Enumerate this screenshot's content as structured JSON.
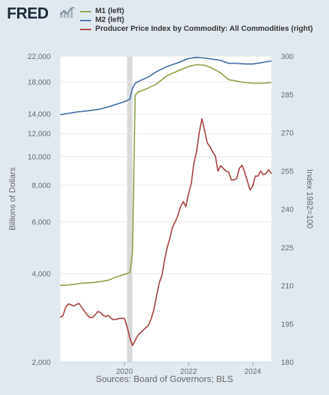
{
  "logo": {
    "text": "FRED",
    "icon": "trend-line-icon"
  },
  "source": "Sources: Board of Governors; BLS",
  "chart_data": {
    "type": "line",
    "title": "",
    "xlabel": "",
    "ylabel_left": "Billions of Dollars",
    "ylabel_right": "Index 1982=100",
    "left_axis": {
      "scale": "log",
      "range": [
        2000,
        22000
      ],
      "ticks": [
        2000,
        4000,
        6000,
        8000,
        10000,
        12000,
        14000,
        18000,
        22000
      ],
      "tick_labels": [
        "2,000",
        "4,000",
        "6,000",
        "8,000",
        "10,000",
        "12,000",
        "14,000",
        "18,000",
        "22,000"
      ]
    },
    "right_axis": {
      "scale": "linear",
      "range": [
        180,
        300
      ],
      "ticks": [
        180,
        195,
        210,
        225,
        240,
        255,
        270,
        285,
        300
      ],
      "tick_labels": [
        "180",
        "195",
        "210",
        "225",
        "240",
        "255",
        "270",
        "285",
        "300"
      ]
    },
    "x_axis": {
      "range": [
        "2018-01",
        "2024-08"
      ],
      "ticks": [
        "2020",
        "2022",
        "2024"
      ]
    },
    "recession": {
      "start": "2020-02",
      "end": "2020-04",
      "color": "#d9d9d9"
    },
    "legend_placement": "top",
    "grid": "horizontal",
    "series": [
      {
        "name": "M1 (left)",
        "axis": "left",
        "color": "#8aa54b",
        "points": [
          [
            "2018-01",
            3650
          ],
          [
            "2018-04",
            3660
          ],
          [
            "2018-07",
            3690
          ],
          [
            "2018-10",
            3720
          ],
          [
            "2019-01",
            3730
          ],
          [
            "2019-04",
            3760
          ],
          [
            "2019-07",
            3800
          ],
          [
            "2019-10",
            3900
          ],
          [
            "2020-01",
            3980
          ],
          [
            "2020-03",
            4030
          ],
          [
            "2020-04",
            4700
          ],
          [
            "2020-05",
            16200
          ],
          [
            "2020-06",
            16600
          ],
          [
            "2020-09",
            17000
          ],
          [
            "2021-01",
            17700
          ],
          [
            "2021-05",
            18900
          ],
          [
            "2021-09",
            19600
          ],
          [
            "2022-01",
            20300
          ],
          [
            "2022-04",
            20600
          ],
          [
            "2022-07",
            20500
          ],
          [
            "2022-10",
            20000
          ],
          [
            "2023-01",
            19300
          ],
          [
            "2023-04",
            18300
          ],
          [
            "2023-07",
            18100
          ],
          [
            "2023-10",
            17900
          ],
          [
            "2024-01",
            17800
          ],
          [
            "2024-04",
            17800
          ],
          [
            "2024-08",
            17900
          ]
        ]
      },
      {
        "name": "M2 (left)",
        "axis": "left",
        "color": "#4572a7",
        "points": [
          [
            "2018-01",
            13900
          ],
          [
            "2018-04",
            14050
          ],
          [
            "2018-07",
            14200
          ],
          [
            "2018-10",
            14300
          ],
          [
            "2019-01",
            14400
          ],
          [
            "2019-04",
            14550
          ],
          [
            "2019-07",
            14800
          ],
          [
            "2019-10",
            15100
          ],
          [
            "2020-01",
            15400
          ],
          [
            "2020-03",
            15700
          ],
          [
            "2020-04",
            17100
          ],
          [
            "2020-05",
            17800
          ],
          [
            "2020-07",
            18200
          ],
          [
            "2020-10",
            18700
          ],
          [
            "2021-01",
            19500
          ],
          [
            "2021-05",
            20300
          ],
          [
            "2021-09",
            20900
          ],
          [
            "2022-01",
            21600
          ],
          [
            "2022-04",
            21800
          ],
          [
            "2022-07",
            21700
          ],
          [
            "2022-10",
            21500
          ],
          [
            "2023-01",
            21300
          ],
          [
            "2023-04",
            20800
          ],
          [
            "2023-07",
            20800
          ],
          [
            "2023-10",
            20700
          ],
          [
            "2024-01",
            20700
          ],
          [
            "2024-04",
            20900
          ],
          [
            "2024-08",
            21200
          ]
        ]
      },
      {
        "name": "Producer Price Index by Commodity: All Commodities (right)",
        "axis": "right",
        "color": "#aa4643",
        "points": [
          [
            "2018-01",
            197.5
          ],
          [
            "2018-02",
            198.3
          ],
          [
            "2018-03",
            201.5
          ],
          [
            "2018-04",
            202.8
          ],
          [
            "2018-05",
            202.5
          ],
          [
            "2018-06",
            202.0
          ],
          [
            "2018-07",
            202.6
          ],
          [
            "2018-08",
            203.0
          ],
          [
            "2018-09",
            201.5
          ],
          [
            "2018-10",
            200.0
          ],
          [
            "2018-11",
            198.6
          ],
          [
            "2018-12",
            197.5
          ],
          [
            "2019-01",
            197.5
          ],
          [
            "2019-02",
            198.5
          ],
          [
            "2019-03",
            199.8
          ],
          [
            "2019-04",
            199.5
          ],
          [
            "2019-05",
            198.3
          ],
          [
            "2019-06",
            197.9
          ],
          [
            "2019-07",
            198.3
          ],
          [
            "2019-08",
            197.1
          ],
          [
            "2019-09",
            196.6
          ],
          [
            "2019-10",
            196.8
          ],
          [
            "2019-11",
            197.1
          ],
          [
            "2019-12",
            197.2
          ],
          [
            "2020-01",
            197.1
          ],
          [
            "2020-02",
            193.8
          ],
          [
            "2020-03",
            189.5
          ],
          [
            "2020-04",
            186.5
          ],
          [
            "2020-05",
            188.5
          ],
          [
            "2020-06",
            190.5
          ],
          [
            "2020-07",
            191.5
          ],
          [
            "2020-08",
            192.5
          ],
          [
            "2020-09",
            193.5
          ],
          [
            "2020-10",
            194.5
          ],
          [
            "2020-11",
            197.0
          ],
          [
            "2020-12",
            200.5
          ],
          [
            "2021-01",
            206.0
          ],
          [
            "2021-02",
            211.0
          ],
          [
            "2021-03",
            214.0
          ],
          [
            "2021-04",
            220.0
          ],
          [
            "2021-05",
            225.0
          ],
          [
            "2021-06",
            228.5
          ],
          [
            "2021-07",
            233.0
          ],
          [
            "2021-08",
            235.0
          ],
          [
            "2021-09",
            237.5
          ],
          [
            "2021-10",
            241.0
          ],
          [
            "2021-11",
            243.0
          ],
          [
            "2021-12",
            241.0
          ],
          [
            "2022-01",
            246.0
          ],
          [
            "2022-02",
            250.0
          ],
          [
            "2022-03",
            258.0
          ],
          [
            "2022-04",
            262.5
          ],
          [
            "2022-05",
            270.0
          ],
          [
            "2022-06",
            275.5
          ],
          [
            "2022-07",
            271.0
          ],
          [
            "2022-08",
            266.0
          ],
          [
            "2022-09",
            264.5
          ],
          [
            "2022-10",
            262.5
          ],
          [
            "2022-11",
            261.0
          ],
          [
            "2022-12",
            255.0
          ],
          [
            "2023-01",
            257.0
          ],
          [
            "2023-02",
            256.0
          ],
          [
            "2023-03",
            255.0
          ],
          [
            "2023-04",
            254.5
          ],
          [
            "2023-05",
            251.5
          ],
          [
            "2023-06",
            251.5
          ],
          [
            "2023-07",
            252.0
          ],
          [
            "2023-08",
            256.0
          ],
          [
            "2023-09",
            257.2
          ],
          [
            "2023-10",
            254.5
          ],
          [
            "2023-11",
            251.0
          ],
          [
            "2023-12",
            247.5
          ],
          [
            "2024-01",
            249.0
          ],
          [
            "2024-02",
            253.0
          ],
          [
            "2024-03",
            253.0
          ],
          [
            "2024-04",
            255.0
          ],
          [
            "2024-05",
            253.5
          ],
          [
            "2024-06",
            254.0
          ],
          [
            "2024-07",
            255.5
          ],
          [
            "2024-08",
            253.8
          ]
        ]
      }
    ]
  }
}
